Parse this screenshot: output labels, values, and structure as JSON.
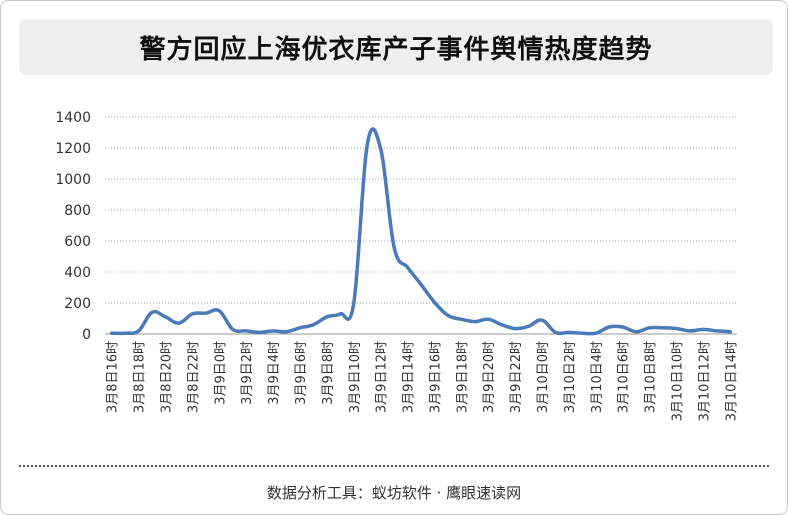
{
  "title": "警方回应上海优衣库产子事件舆情热度趋势",
  "footer": "数据分析工具：蚁坊软件 · 鹰眼速读网",
  "colors": {
    "line": "#4a7ab7",
    "grid": "#8fa8d0",
    "axis": "#999999",
    "text": "#333333"
  },
  "chart_data": {
    "type": "line",
    "title": "警方回应上海优衣库产子事件舆情热度趋势",
    "xlabel": "",
    "ylabel": "",
    "ylim": [
      0,
      1400
    ],
    "yticks": [
      0,
      200,
      400,
      600,
      800,
      1000,
      1200,
      1400
    ],
    "grid": true,
    "x": [
      "3月8日16时",
      "3月8日17时",
      "3月8日18时",
      "3月8日19时",
      "3月8日20时",
      "3月8日21时",
      "3月8日22时",
      "3月8日23时",
      "3月9日0时",
      "3月9日1时",
      "3月9日2时",
      "3月9日3时",
      "3月9日4时",
      "3月9日5时",
      "3月9日6时",
      "3月9日7时",
      "3月9日8时",
      "3月9日9时",
      "3月9日10时",
      "3月9日11时",
      "3月9日12时",
      "3月9日13时",
      "3月9日14时",
      "3月9日15时",
      "3月9日16时",
      "3月9日17时",
      "3月9日18时",
      "3月9日19时",
      "3月9日20时",
      "3月9日21时",
      "3月9日22时",
      "3月9日23时",
      "3月10日0时",
      "3月10日1时",
      "3月10日2时",
      "3月10日3时",
      "3月10日4时",
      "3月10日5时",
      "3月10日6时",
      "3月10日7时",
      "3月10日8时",
      "3月10日9时",
      "3月10日10时",
      "3月10日11时",
      "3月10日12时",
      "3月10日13时",
      "3月10日14时"
    ],
    "xtick_labels": [
      "3月8日16时",
      "3月8日18时",
      "3月8日20时",
      "3月8日22时",
      "3月9日0时",
      "3月9日2时",
      "3月9日4时",
      "3月9日6时",
      "3月9日8时",
      "3月9日10时",
      "3月9日12时",
      "3月9日14时",
      "3月9日16时",
      "3月9日18时",
      "3月9日20时",
      "3月9日22时",
      "3月10日0时",
      "3月10日2时",
      "3月10日4时",
      "3月10日6时",
      "3月10日8时",
      "3月10日10时",
      "3月10日12时",
      "3月10日14时"
    ],
    "series": [
      {
        "values": [
          5,
          5,
          20,
          140,
          110,
          70,
          130,
          135,
          150,
          30,
          20,
          10,
          20,
          15,
          40,
          60,
          110,
          130,
          200,
          1220,
          1195,
          560,
          430,
          320,
          205,
          120,
          95,
          80,
          95,
          60,
          35,
          50,
          90,
          10,
          10,
          5,
          5,
          45,
          45,
          15,
          40,
          40,
          35,
          20,
          30,
          20,
          15
        ]
      }
    ]
  }
}
